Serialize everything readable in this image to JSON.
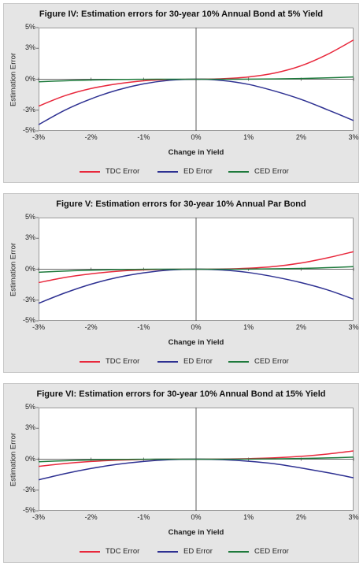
{
  "colors": {
    "tdc": "#e8283c",
    "ed": "#2e3192",
    "ced": "#1e7a3c",
    "panel_bg": "#e5e5e5"
  },
  "legend": {
    "tdc": "TDC Error",
    "ed": "ED Error",
    "ced": "CED Error"
  },
  "chart_data": [
    {
      "type": "line",
      "title": "Figure IV: Estimation errors for 30-year 10% Annual Bond at 5% Yield",
      "xlabel": "Change in Yield",
      "ylabel": "Estimation Error",
      "x_ticks": [
        "-3%",
        "-2%",
        "-1%",
        "0%",
        "1%",
        "2%",
        "3%"
      ],
      "y_ticks": [
        "5%",
        "3%",
        "0%",
        "-3%",
        "-5%"
      ],
      "xlim": [
        -3,
        3
      ],
      "ylim": [
        -5,
        5
      ],
      "grid": false,
      "x": [
        -3,
        -2.5,
        -2,
        -1.5,
        -1,
        -0.5,
        0,
        0.5,
        1,
        1.5,
        2,
        2.5,
        3
      ],
      "series": [
        {
          "name": "TDC Error",
          "values": [
            -2.6,
            -1.6,
            -0.9,
            -0.45,
            -0.15,
            -0.03,
            0,
            0.05,
            0.22,
            0.6,
            1.3,
            2.4,
            3.8
          ]
        },
        {
          "name": "ED Error",
          "values": [
            -4.4,
            -3.0,
            -1.9,
            -1.05,
            -0.45,
            -0.1,
            0,
            -0.12,
            -0.5,
            -1.15,
            -1.95,
            -2.95,
            -4.0
          ]
        },
        {
          "name": "CED Error",
          "values": [
            -0.25,
            -0.15,
            -0.08,
            -0.03,
            -0.01,
            0,
            0,
            0,
            0.01,
            0.03,
            0.07,
            0.13,
            0.22
          ]
        }
      ]
    },
    {
      "type": "line",
      "title": "Figure V: Estimation errors for 30-year 10% Annual Par Bond",
      "xlabel": "Change in Yield",
      "ylabel": "Estimation Error",
      "x_ticks": [
        "-3%",
        "-2%",
        "-1%",
        "0%",
        "1%",
        "2%",
        "3%"
      ],
      "y_ticks": [
        "5%",
        "3%",
        "0%",
        "-3%",
        "-5%"
      ],
      "xlim": [
        -3,
        3
      ],
      "ylim": [
        -5,
        5
      ],
      "grid": false,
      "x": [
        -3,
        -2.5,
        -2,
        -1.5,
        -1,
        -0.5,
        0,
        0.5,
        1,
        1.5,
        2,
        2.5,
        3
      ],
      "series": [
        {
          "name": "TDC Error",
          "values": [
            -1.3,
            -0.8,
            -0.45,
            -0.2,
            -0.07,
            -0.01,
            0,
            0.02,
            0.1,
            0.27,
            0.6,
            1.1,
            1.7
          ]
        },
        {
          "name": "ED Error",
          "values": [
            -3.3,
            -2.3,
            -1.45,
            -0.8,
            -0.35,
            -0.08,
            0,
            -0.08,
            -0.32,
            -0.75,
            -1.3,
            -2.0,
            -2.9
          ]
        },
        {
          "name": "CED Error",
          "values": [
            -0.3,
            -0.18,
            -0.1,
            -0.04,
            -0.01,
            0,
            0,
            0,
            0.01,
            0.04,
            0.08,
            0.15,
            0.25
          ]
        }
      ]
    },
    {
      "type": "line",
      "title": "Figure VI: Estimation errors for 30-year 10% Annual Bond at 15% Yield",
      "xlabel": "Change in Yield",
      "ylabel": "Estimation Error",
      "x_ticks": [
        "-3%",
        "-2%",
        "-1%",
        "0%",
        "1%",
        "2%",
        "3%"
      ],
      "y_ticks": [
        "5%",
        "3%",
        "0%",
        "-3%",
        "-5%"
      ],
      "xlim": [
        -3,
        3
      ],
      "ylim": [
        -5,
        5
      ],
      "grid": false,
      "x": [
        -3,
        -2.5,
        -2,
        -1.5,
        -1,
        -0.5,
        0,
        0.5,
        1,
        1.5,
        2,
        2.5,
        3
      ],
      "series": [
        {
          "name": "TDC Error",
          "values": [
            -0.7,
            -0.42,
            -0.22,
            -0.1,
            -0.03,
            0,
            0,
            0.01,
            0.05,
            0.13,
            0.28,
            0.5,
            0.8
          ]
        },
        {
          "name": "ED Error",
          "values": [
            -2.0,
            -1.4,
            -0.9,
            -0.5,
            -0.22,
            -0.05,
            0,
            -0.05,
            -0.2,
            -0.45,
            -0.85,
            -1.3,
            -1.8
          ]
        },
        {
          "name": "CED Error",
          "values": [
            -0.25,
            -0.15,
            -0.08,
            -0.03,
            -0.01,
            0,
            0,
            0,
            0.01,
            0.03,
            0.07,
            0.12,
            0.2
          ]
        }
      ]
    }
  ]
}
